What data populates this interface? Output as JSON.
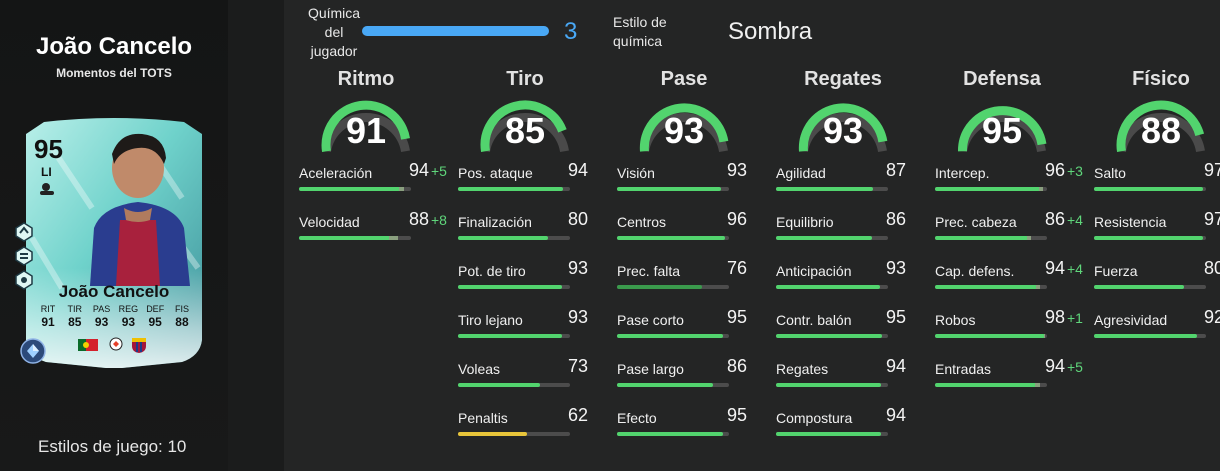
{
  "player": {
    "name": "João Cancelo",
    "subtitle": "Momentos del TOTS",
    "card": {
      "overall": "95",
      "position": "LI",
      "name": "João Cancelo",
      "stats": [
        {
          "label": "RIT",
          "value": "91"
        },
        {
          "label": "TIR",
          "value": "85"
        },
        {
          "label": "PAS",
          "value": "93"
        },
        {
          "label": "REG",
          "value": "93"
        },
        {
          "label": "DEF",
          "value": "95"
        },
        {
          "label": "FIS",
          "value": "88"
        }
      ]
    },
    "playstyles_label": "Estilos de juego: 10"
  },
  "chemistry": {
    "label_line1": "Química",
    "label_line2": "del",
    "label_line3": "jugador",
    "value": "3",
    "max": 3,
    "style_label_line1": "Estilo de",
    "style_label_line2": "química",
    "style_value": "Sombra"
  },
  "colors": {
    "accent_blue": "#49a8f5",
    "stat_green": "#52d46e",
    "stat_yellow": "#e8c53a",
    "boost_green": "#5fd67b",
    "card_teal": "#7fd9d3"
  },
  "categories": [
    {
      "title": "Ritmo",
      "value": "91",
      "stats": [
        {
          "name": "Aceleración",
          "value": "94",
          "boost": "+5"
        },
        {
          "name": "Velocidad",
          "value": "88",
          "boost": "+8"
        }
      ]
    },
    {
      "title": "Tiro",
      "value": "85",
      "stats": [
        {
          "name": "Pos. ataque",
          "value": "94",
          "boost": ""
        },
        {
          "name": "Finalización",
          "value": "80",
          "boost": ""
        },
        {
          "name": "Pot. de tiro",
          "value": "93",
          "boost": ""
        },
        {
          "name": "Tiro lejano",
          "value": "93",
          "boost": ""
        },
        {
          "name": "Voleas",
          "value": "73",
          "boost": ""
        },
        {
          "name": "Penaltis",
          "value": "62",
          "boost": ""
        }
      ]
    },
    {
      "title": "Pase",
      "value": "93",
      "stats": [
        {
          "name": "Visión",
          "value": "93",
          "boost": ""
        },
        {
          "name": "Centros",
          "value": "96",
          "boost": ""
        },
        {
          "name": "Prec. falta",
          "value": "76",
          "boost": ""
        },
        {
          "name": "Pase corto",
          "value": "95",
          "boost": ""
        },
        {
          "name": "Pase largo",
          "value": "86",
          "boost": ""
        },
        {
          "name": "Efecto",
          "value": "95",
          "boost": ""
        }
      ]
    },
    {
      "title": "Regates",
      "value": "93",
      "stats": [
        {
          "name": "Agilidad",
          "value": "87",
          "boost": ""
        },
        {
          "name": "Equilibrio",
          "value": "86",
          "boost": ""
        },
        {
          "name": "Anticipación",
          "value": "93",
          "boost": ""
        },
        {
          "name": "Contr. balón",
          "value": "95",
          "boost": ""
        },
        {
          "name": "Regates",
          "value": "94",
          "boost": ""
        },
        {
          "name": "Compostura",
          "value": "94",
          "boost": ""
        }
      ]
    },
    {
      "title": "Defensa",
      "value": "95",
      "stats": [
        {
          "name": "Intercep.",
          "value": "96",
          "boost": "+3"
        },
        {
          "name": "Prec. cabeza",
          "value": "86",
          "boost": "+4"
        },
        {
          "name": "Cap. defens.",
          "value": "94",
          "boost": "+4"
        },
        {
          "name": "Robos",
          "value": "98",
          "boost": "+1"
        },
        {
          "name": "Entradas",
          "value": "94",
          "boost": "+5"
        }
      ]
    },
    {
      "title": "Físico",
      "value": "88",
      "stats": [
        {
          "name": "Salto",
          "value": "97",
          "boost": ""
        },
        {
          "name": "Resistencia",
          "value": "97",
          "boost": ""
        },
        {
          "name": "Fuerza",
          "value": "80",
          "boost": ""
        },
        {
          "name": "Agresividad",
          "value": "92",
          "boost": ""
        }
      ]
    }
  ]
}
